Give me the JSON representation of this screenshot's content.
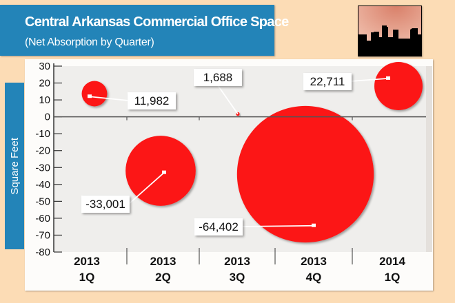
{
  "header": {
    "title": "Central Arkansas Commercial Office Space",
    "subtitle": "(Net Absorption by Quarter)"
  },
  "images": {
    "skyline": "city-skyline-silhouette"
  },
  "colors": {
    "header": "#2384b8",
    "bubble": "#fc1616",
    "background": "#fcdcb5"
  },
  "chart_data": {
    "type": "scatter",
    "title": "Central Arkansas Commercial Office Space",
    "subtitle": "(Net Absorption by Quarter)",
    "ylabel": "Square Feet",
    "ylim": [
      -80,
      30
    ],
    "yticks": [
      30,
      20,
      10,
      0,
      -10,
      -20,
      -30,
      -40,
      -50,
      -60,
      -70,
      -80
    ],
    "categories": [
      [
        "2013",
        "1Q"
      ],
      [
        "2013",
        "2Q"
      ],
      [
        "2013",
        "3Q"
      ],
      [
        "2013",
        "4Q"
      ],
      [
        "2014",
        "1Q"
      ]
    ],
    "values": [
      11.982,
      -33.001,
      1.688,
      -64.402,
      22.711
    ],
    "data_labels": [
      "11,982",
      "-33,001",
      "1,688",
      "-64,402",
      "22,711"
    ],
    "bubble_size": "proportional to absolute value",
    "grid": false
  }
}
